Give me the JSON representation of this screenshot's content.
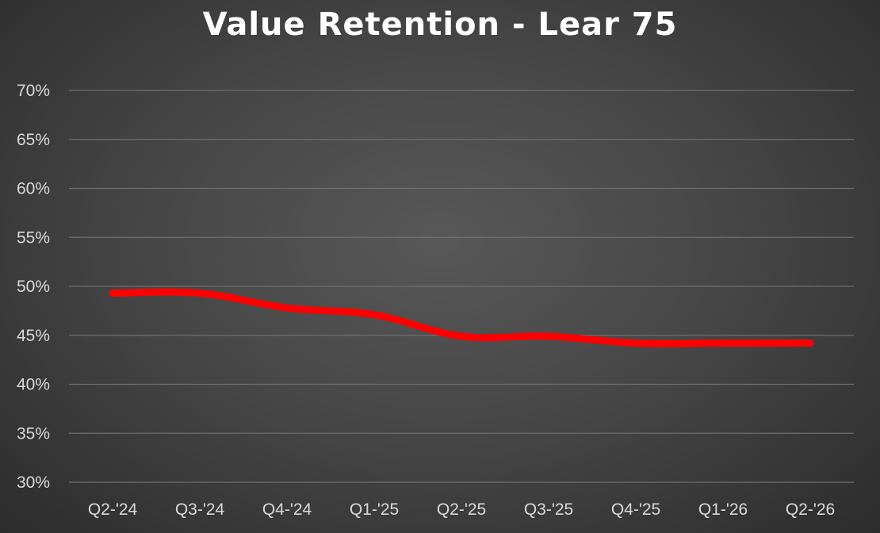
{
  "chart_data": {
    "type": "line",
    "title": "Value Retention - Lear 75",
    "xlabel": "",
    "ylabel": "",
    "categories": [
      "Q2-'24",
      "Q3-'24",
      "Q4-'24",
      "Q1-'25",
      "Q2-'25",
      "Q3-'25",
      "Q4-'25",
      "Q1-'26",
      "Q2-'26"
    ],
    "series": [
      {
        "values": [
          49.3,
          49.3,
          47.8,
          47.1,
          44.9,
          44.9,
          44.2,
          44.2,
          44.2
        ],
        "color": "#ff0000"
      }
    ],
    "ylim": [
      30,
      70
    ],
    "yticks": [
      30,
      35,
      40,
      45,
      50,
      55,
      60,
      65,
      70
    ],
    "ytick_labels": [
      "30%",
      "35%",
      "40%",
      "45%",
      "50%",
      "55%",
      "60%",
      "65%",
      "70%"
    ],
    "grid": true,
    "legend": "none"
  }
}
